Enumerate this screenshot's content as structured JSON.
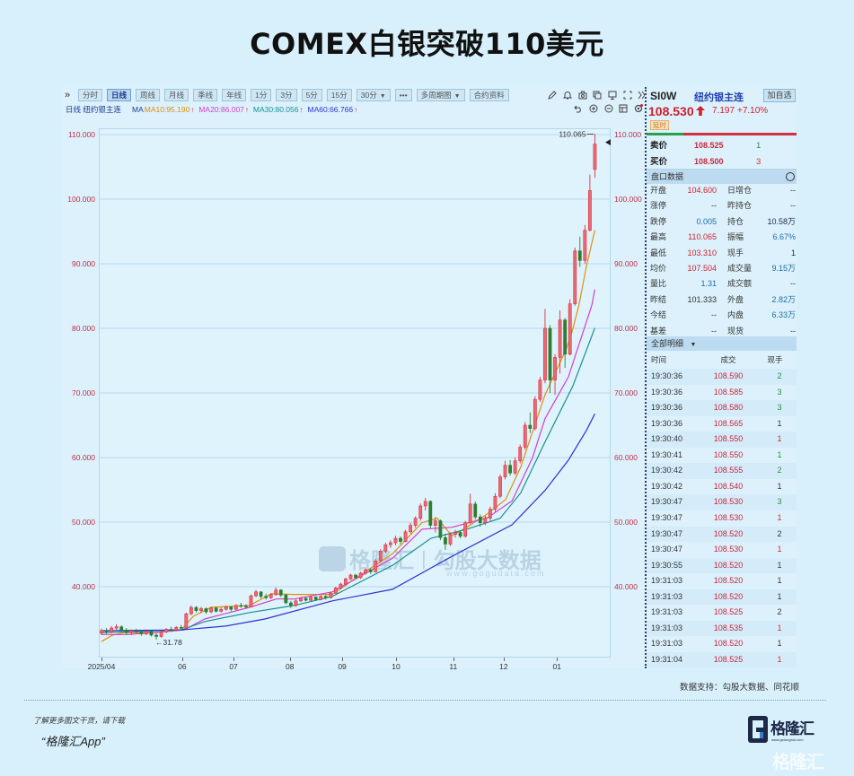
{
  "page": {
    "title": "COMEX白银突破110美元"
  },
  "toolbar": {
    "expand_icon": "»",
    "buttons": [
      {
        "label": "分时"
      },
      {
        "label": "日线",
        "active": true
      },
      {
        "label": "周线"
      },
      {
        "label": "月线"
      },
      {
        "label": "季线"
      },
      {
        "label": "年线"
      },
      {
        "label": "1分"
      },
      {
        "label": "3分"
      },
      {
        "label": "5分"
      },
      {
        "label": "15分"
      },
      {
        "label": "30分",
        "dropdown": true
      },
      {
        "label": "•••"
      },
      {
        "label": "多周期图",
        "dropdown": true
      },
      {
        "label": "合约资料"
      }
    ],
    "dropdown_glyph": "▼",
    "right_icons": [
      "pencil-icon",
      "bell-icon",
      "camera-icon",
      "copy-icon",
      "monitor-icon",
      "fullscreen-icon",
      "double-chevron-right-icon"
    ],
    "secondary_icons": [
      "undo-icon",
      "zoom-in-icon",
      "zoom-out-icon",
      "layout-icon",
      "settings-icon"
    ]
  },
  "legend": {
    "period_symbol": "日线 纽约银主连",
    "ma_label": "MA",
    "up_arrow": "↑",
    "items": [
      {
        "text": "MA10:95.190",
        "color": "#e0900a"
      },
      {
        "text": "MA20:86.007",
        "color": "#d23fc8"
      },
      {
        "text": "MA30:80.056",
        "color": "#17918f"
      },
      {
        "text": "MA60:66.766",
        "color": "#2b32d0"
      }
    ]
  },
  "chart_data": {
    "type": "candlestick",
    "title": "纽约银主连 日线",
    "symbol": "SI0W",
    "ylim": [
      29.2,
      111.0
    ],
    "grid": true,
    "yticks": [
      {
        "value": 110,
        "label": "110.000"
      },
      {
        "value": 100,
        "label": "100.000"
      },
      {
        "value": 90,
        "label": "90.000"
      },
      {
        "value": 80,
        "label": "80.000"
      },
      {
        "value": 70,
        "label": "70.000"
      },
      {
        "value": 60,
        "label": "60.000"
      },
      {
        "value": 50,
        "label": "50.000"
      },
      {
        "value": 40,
        "label": "40.000"
      }
    ],
    "xticks": [
      {
        "label": "2025/04",
        "i": 0
      },
      {
        "label": "06",
        "i": 16.2
      },
      {
        "label": "07",
        "i": 26.5
      },
      {
        "label": "08",
        "i": 37.8
      },
      {
        "label": "09",
        "i": 48.3
      },
      {
        "label": "10",
        "i": 59.1
      },
      {
        "label": "11",
        "i": 70.6
      },
      {
        "label": "12",
        "i": 80.7
      },
      {
        "label": "01",
        "i": 91.4
      }
    ],
    "candle_fields": [
      "open",
      "high",
      "low",
      "close"
    ],
    "candles": [
      [
        32.8,
        33.5,
        32.5,
        33.2
      ],
      [
        33.2,
        33.6,
        32.7,
        33.0
      ],
      [
        33.0,
        33.9,
        32.8,
        33.6
      ],
      [
        33.6,
        34.2,
        33.2,
        33.8
      ],
      [
        33.8,
        34.0,
        33.0,
        33.3
      ],
      [
        33.3,
        33.6,
        32.6,
        32.9
      ],
      [
        32.9,
        33.4,
        32.5,
        33.2
      ],
      [
        33.2,
        33.5,
        32.8,
        33.0
      ],
      [
        33.0,
        33.3,
        32.4,
        32.7
      ],
      [
        32.7,
        33.4,
        32.5,
        33.1
      ],
      [
        33.1,
        33.2,
        32.3,
        32.5
      ],
      [
        32.5,
        32.8,
        31.78,
        32.3
      ],
      [
        32.3,
        33.2,
        32.1,
        33.0
      ],
      [
        33.0,
        33.6,
        32.8,
        33.4
      ],
      [
        33.4,
        33.8,
        33.0,
        33.3
      ],
      [
        33.3,
        33.9,
        33.1,
        33.7
      ],
      [
        33.7,
        34.1,
        33.4,
        33.6
      ],
      [
        33.6,
        36.0,
        33.5,
        35.8
      ],
      [
        35.8,
        37.1,
        35.6,
        36.8
      ],
      [
        36.8,
        37.0,
        36.0,
        36.3
      ],
      [
        36.3,
        36.9,
        35.9,
        36.6
      ],
      [
        36.6,
        36.8,
        35.8,
        36.1
      ],
      [
        36.1,
        36.9,
        35.9,
        36.7
      ],
      [
        36.7,
        36.9,
        36.0,
        36.2
      ],
      [
        36.2,
        36.8,
        36.0,
        36.5
      ],
      [
        36.5,
        37.1,
        36.3,
        36.9
      ],
      [
        36.9,
        37.0,
        36.2,
        36.5
      ],
      [
        36.5,
        37.3,
        36.4,
        37.1
      ],
      [
        37.1,
        37.5,
        36.7,
        37.0
      ],
      [
        37.0,
        37.3,
        36.6,
        36.9
      ],
      [
        36.9,
        38.8,
        36.8,
        38.6
      ],
      [
        38.6,
        39.5,
        38.4,
        39.2
      ],
      [
        39.2,
        39.3,
        38.2,
        38.5
      ],
      [
        38.5,
        38.9,
        38.0,
        38.3
      ],
      [
        38.3,
        39.0,
        38.1,
        38.8
      ],
      [
        38.8,
        39.9,
        38.6,
        39.5
      ],
      [
        39.5,
        39.6,
        38.4,
        38.7
      ],
      [
        38.7,
        38.9,
        37.3,
        37.5
      ],
      [
        37.5,
        37.8,
        36.7,
        37.1
      ],
      [
        37.1,
        38.0,
        36.9,
        37.8
      ],
      [
        37.8,
        38.4,
        37.6,
        38.2
      ],
      [
        38.2,
        38.4,
        37.7,
        37.9
      ],
      [
        37.9,
        38.6,
        37.8,
        38.4
      ],
      [
        38.4,
        38.5,
        37.8,
        38.0
      ],
      [
        38.0,
        38.7,
        37.9,
        38.5
      ],
      [
        38.5,
        38.7,
        38.0,
        38.3
      ],
      [
        38.3,
        39.2,
        38.2,
        39.0
      ],
      [
        39.0,
        40.0,
        38.9,
        39.8
      ],
      [
        39.8,
        40.6,
        39.6,
        40.4
      ],
      [
        40.4,
        41.4,
        40.2,
        41.2
      ],
      [
        41.2,
        42.0,
        41.0,
        41.8
      ],
      [
        41.8,
        42.0,
        41.2,
        41.4
      ],
      [
        41.4,
        42.3,
        41.2,
        42.1
      ],
      [
        42.1,
        42.8,
        41.9,
        42.6
      ],
      [
        42.6,
        42.9,
        42.0,
        42.3
      ],
      [
        42.3,
        44.3,
        42.2,
        44.0
      ],
      [
        44.0,
        45.8,
        43.8,
        45.5
      ],
      [
        45.5,
        46.8,
        45.2,
        46.5
      ],
      [
        46.5,
        47.2,
        46.0,
        46.8
      ],
      [
        46.8,
        47.9,
        46.4,
        47.5
      ],
      [
        47.5,
        47.8,
        46.6,
        47.0
      ],
      [
        47.0,
        48.8,
        46.9,
        48.5
      ],
      [
        48.5,
        49.9,
        48.2,
        49.5
      ],
      [
        49.5,
        50.9,
        49.1,
        50.6
      ],
      [
        50.6,
        52.9,
        50.2,
        52.5
      ],
      [
        52.5,
        53.75,
        51.8,
        53.2
      ],
      [
        53.2,
        53.4,
        49.0,
        49.5
      ],
      [
        49.5,
        50.8,
        48.4,
        50.2
      ],
      [
        50.2,
        50.4,
        47.2,
        47.6
      ],
      [
        47.6,
        48.2,
        45.7,
        46.6
      ],
      [
        46.6,
        48.4,
        46.3,
        48.1
      ],
      [
        48.1,
        48.8,
        47.6,
        48.4
      ],
      [
        48.4,
        48.6,
        47.5,
        47.8
      ],
      [
        47.8,
        50.2,
        47.6,
        49.9
      ],
      [
        49.9,
        54.4,
        49.7,
        52.8
      ],
      [
        52.8,
        53.2,
        50.4,
        50.8
      ],
      [
        50.8,
        51.2,
        49.3,
        49.9
      ],
      [
        49.9,
        51.0,
        49.5,
        50.6
      ],
      [
        50.6,
        52.4,
        50.2,
        52.0
      ],
      [
        52.0,
        54.5,
        51.6,
        54.0
      ],
      [
        54.0,
        57.4,
        53.7,
        57.0
      ],
      [
        57.0,
        59.5,
        56.6,
        58.8
      ],
      [
        58.8,
        59.6,
        57.2,
        57.6
      ],
      [
        57.6,
        60.0,
        57.3,
        59.5
      ],
      [
        59.5,
        62.0,
        59.1,
        61.6
      ],
      [
        61.6,
        65.5,
        61.2,
        65.0
      ],
      [
        65.0,
        67.0,
        63.8,
        64.5
      ],
      [
        64.5,
        69.5,
        64.2,
        69.0
      ],
      [
        69.0,
        72.5,
        68.6,
        72.0
      ],
      [
        72.0,
        83.0,
        71.5,
        80.0
      ],
      [
        80.0,
        80.5,
        70.0,
        72.0
      ],
      [
        72.0,
        76.0,
        69.7,
        75.5
      ],
      [
        75.5,
        82.8,
        73.0,
        81.3
      ],
      [
        81.3,
        81.6,
        73.9,
        76.0
      ],
      [
        76.0,
        84.5,
        75.8,
        83.8
      ],
      [
        83.8,
        92.5,
        83.5,
        92.0
      ],
      [
        92.0,
        94.2,
        89.5,
        90.5
      ],
      [
        90.5,
        96.0,
        90.0,
        95.2
      ],
      [
        95.2,
        103.8,
        95.0,
        101.33
      ],
      [
        104.6,
        110.065,
        103.31,
        108.53
      ]
    ],
    "series": [
      {
        "name": "MA10",
        "last": 95.19,
        "color": "#e0900a",
        "points": [
          [
            0,
            31.5
          ],
          [
            2.2,
            32.5
          ],
          [
            4.5,
            32.9
          ],
          [
            10.7,
            32.9
          ],
          [
            16.0,
            33.3
          ],
          [
            18.4,
            35.4
          ],
          [
            22.0,
            36.8
          ],
          [
            29.7,
            37.1
          ],
          [
            34.1,
            38.9
          ],
          [
            38.7,
            38.8
          ],
          [
            46.3,
            38.8
          ],
          [
            52.3,
            42.0
          ],
          [
            58.4,
            45.1
          ],
          [
            64.3,
            49.9
          ],
          [
            67.4,
            50.6
          ],
          [
            70.3,
            47.9
          ],
          [
            73.3,
            49.2
          ],
          [
            77.5,
            51.3
          ],
          [
            81.1,
            53.5
          ],
          [
            84.1,
            58.5
          ],
          [
            89.0,
            69.7
          ],
          [
            93.2,
            76.7
          ],
          [
            94.4,
            79.4
          ],
          [
            95.8,
            83.6
          ],
          [
            97.3,
            89.6
          ],
          [
            99,
            95.19
          ]
        ]
      },
      {
        "name": "MA20",
        "last": 86.007,
        "color": "#d23fc8",
        "points": [
          [
            0,
            32.6
          ],
          [
            5.4,
            32.6
          ],
          [
            16.6,
            33.3
          ],
          [
            20.7,
            35.0
          ],
          [
            29.7,
            36.8
          ],
          [
            35.1,
            38.1
          ],
          [
            38.7,
            38.1
          ],
          [
            46.3,
            39.2
          ],
          [
            58.4,
            44.4
          ],
          [
            64.3,
            48.9
          ],
          [
            70.3,
            49.2
          ],
          [
            77.5,
            50.7
          ],
          [
            82.4,
            53.3
          ],
          [
            86.5,
            60.0
          ],
          [
            89.0,
            66.0
          ],
          [
            93.7,
            72.5
          ],
          [
            98.4,
            83.6
          ],
          [
            99,
            86.007
          ]
        ]
      },
      {
        "name": "MA30",
        "last": 80.056,
        "color": "#17918f",
        "points": [
          [
            0,
            32.9
          ],
          [
            16.0,
            33.3
          ],
          [
            20.7,
            34.6
          ],
          [
            29.7,
            36.0
          ],
          [
            38.7,
            37.1
          ],
          [
            46.3,
            38.5
          ],
          [
            58.4,
            43.3
          ],
          [
            66.1,
            47.5
          ],
          [
            73.3,
            48.9
          ],
          [
            80.0,
            50.6
          ],
          [
            84.1,
            54.5
          ],
          [
            89.0,
            62.4
          ],
          [
            94.6,
            71.1
          ],
          [
            99,
            80.056
          ]
        ]
      },
      {
        "name": "MA60",
        "last": 66.766,
        "color": "#2b32d0",
        "points": [
          [
            0,
            33.2
          ],
          [
            16.0,
            33.3
          ],
          [
            24.9,
            33.9
          ],
          [
            32.8,
            35.0
          ],
          [
            46.3,
            37.8
          ],
          [
            58.4,
            39.6
          ],
          [
            70.3,
            44.7
          ],
          [
            82.4,
            49.6
          ],
          [
            89.0,
            54.9
          ],
          [
            93.7,
            59.6
          ],
          [
            97.3,
            64.2
          ],
          [
            99,
            66.766
          ]
        ]
      }
    ],
    "annotations": [
      {
        "text": "110.065",
        "i": 99,
        "value": 110.065,
        "side": "left"
      },
      {
        "text": "31.78",
        "i": 11,
        "value": 31.78,
        "side": "right"
      }
    ],
    "current_price": 108.53,
    "up_color": "#d9343f",
    "down_color": "#2e7d32"
  },
  "chart_watermark": {
    "brand": "格隆汇",
    "divider": "|",
    "partner": "勾股大数据",
    "url": "www.gogudata.com"
  },
  "quote": {
    "symbol": "SI0W",
    "name": "纽约银主连",
    "add_watchlist_label": "加自选",
    "last_price": "108.530",
    "change": "7.197",
    "change_pct": "+7.10%",
    "delay_badge": "延时",
    "ask": {
      "label": "卖价",
      "price": "108.525",
      "qty": "1",
      "qty_color": "#2e8b3e"
    },
    "bid": {
      "label": "买价",
      "price": "108.500",
      "qty": "3",
      "qty_color": "#d22a3a"
    },
    "section_title": "盘口数据",
    "rows": [
      {
        "l1": "开盘",
        "v1": "104.600",
        "c1": "#d0202e",
        "l2": "日增仓",
        "v2": "--",
        "c2": "#333333"
      },
      {
        "l1": "涨停",
        "v1": "--",
        "c1": "#333333",
        "l2": "昨持仓",
        "v2": "--",
        "c2": "#333333"
      },
      {
        "l1": "跌停",
        "v1": "0.005",
        "c1": "#1c6ea4",
        "l2": "持仓",
        "v2": "10.58万",
        "c2": "#1a2a4a"
      },
      {
        "l1": "最高",
        "v1": "110.065",
        "c1": "#d0202e",
        "l2": "振幅",
        "v2": "6.67%",
        "c2": "#1c6ea4"
      },
      {
        "l1": "最低",
        "v1": "103.310",
        "c1": "#d0202e",
        "l2": "现手",
        "v2": "1",
        "c2": "#1a2a4a"
      },
      {
        "l1": "均价",
        "v1": "107.504",
        "c1": "#d0202e",
        "l2": "成交量",
        "v2": "9.15万",
        "c2": "#1c6ea4"
      },
      {
        "l1": "量比",
        "v1": "1.31",
        "c1": "#1c6ea4",
        "l2": "成交额",
        "v2": "--",
        "c2": "#333333"
      },
      {
        "l1": "昨结",
        "v1": "101.333",
        "c1": "#333333",
        "l2": "外盘",
        "v2": "2.82万",
        "c2": "#1c6ea4"
      },
      {
        "l1": "今结",
        "v1": "--",
        "c1": "#333333",
        "l2": "内盘",
        "v2": "6.33万",
        "c2": "#1c6ea4"
      },
      {
        "l1": "基差",
        "v1": "--",
        "c1": "#333333",
        "l2": "现货",
        "v2": "--",
        "c2": "#333333"
      }
    ]
  },
  "trades": {
    "title": "全部明细",
    "title_dropdown": "▼",
    "headers": {
      "time": "时间",
      "price": "成交",
      "qty": "现手"
    },
    "price_color": "#c8283c",
    "rows": [
      {
        "time": "19:30:36",
        "price": "108.590",
        "qty": "2",
        "qty_color": "#2e8b3e"
      },
      {
        "time": "19:30:36",
        "price": "108.585",
        "qty": "3",
        "qty_color": "#2e8b3e"
      },
      {
        "time": "19:30:36",
        "price": "108.580",
        "qty": "3",
        "qty_color": "#2e8b3e"
      },
      {
        "time": "19:30:36",
        "price": "108.565",
        "qty": "1",
        "qty_color": "#333333"
      },
      {
        "time": "19:30:40",
        "price": "108.550",
        "qty": "1",
        "qty_color": "#d22a3a"
      },
      {
        "time": "19:30:41",
        "price": "108.550",
        "qty": "1",
        "qty_color": "#2e8b3e"
      },
      {
        "time": "19:30:42",
        "price": "108.555",
        "qty": "2",
        "qty_color": "#2e8b3e"
      },
      {
        "time": "19:30:42",
        "price": "108.540",
        "qty": "1",
        "qty_color": "#333333"
      },
      {
        "time": "19:30:47",
        "price": "108.530",
        "qty": "3",
        "qty_color": "#2e8b3e"
      },
      {
        "time": "19:30:47",
        "price": "108.530",
        "qty": "1",
        "qty_color": "#d22a3a"
      },
      {
        "time": "19:30:47",
        "price": "108.520",
        "qty": "2",
        "qty_color": "#333333"
      },
      {
        "time": "19:30:47",
        "price": "108.530",
        "qty": "1",
        "qty_color": "#d22a3a"
      },
      {
        "time": "19:30:55",
        "price": "108.520",
        "qty": "1",
        "qty_color": "#333333"
      },
      {
        "time": "19:31:03",
        "price": "108.520",
        "qty": "1",
        "qty_color": "#333333"
      },
      {
        "time": "19:31:03",
        "price": "108.520",
        "qty": "1",
        "qty_color": "#333333"
      },
      {
        "time": "19:31:03",
        "price": "108.525",
        "qty": "2",
        "qty_color": "#333333"
      },
      {
        "time": "19:31:03",
        "price": "108.535",
        "qty": "1",
        "qty_color": "#d22a3a"
      },
      {
        "time": "19:31:03",
        "price": "108.520",
        "qty": "1",
        "qty_color": "#333333"
      },
      {
        "time": "19:31:04",
        "price": "108.525",
        "qty": "1",
        "qty_color": "#d22a3a"
      }
    ]
  },
  "footer": {
    "source": "数据支持：勾股大数据、同花顺",
    "promo_line1": "了解更多图文干货，请下载",
    "promo_line2": "“格隆汇App”",
    "logo_text": "格隆汇",
    "logo_url": "www.gelonghui.com",
    "watermark": "格隆汇"
  }
}
